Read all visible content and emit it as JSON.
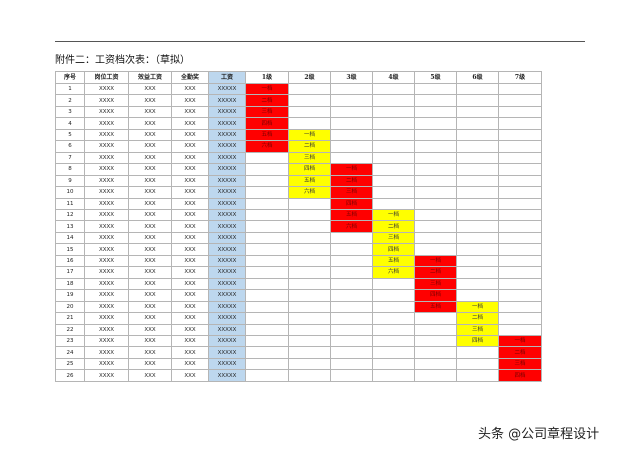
{
  "title": "附件二：工资档次表：（草拟）",
  "headers": [
    "序号",
    "岗位工资",
    "效益工资",
    "全勤奖",
    "工资",
    "1级",
    "2级",
    "3级",
    "4级",
    "5级",
    "6级",
    "7级"
  ],
  "row_values": {
    "post_wage": "XXXX",
    "bonus_wage": "XXX",
    "attendance": "XXX",
    "wage": "XXXXX"
  },
  "row_count": 26,
  "grades": [
    {
      "level": "1级",
      "start_row": 1,
      "color": "#ff0000",
      "labels": [
        "一档",
        "二档",
        "三档",
        "四档",
        "五档",
        "六档"
      ]
    },
    {
      "level": "2级",
      "start_row": 5,
      "color": "#ffff00",
      "labels": [
        "一档",
        "二档",
        "三档",
        "四档",
        "五档",
        "六档"
      ]
    },
    {
      "level": "3级",
      "start_row": 8,
      "color": "#ff0000",
      "labels": [
        "一档",
        "二档",
        "三档",
        "四档",
        "五档",
        "六档"
      ]
    },
    {
      "level": "4级",
      "start_row": 12,
      "color": "#ffff00",
      "labels": [
        "一档",
        "二档",
        "三档",
        "四档",
        "五档",
        "六档"
      ]
    },
    {
      "level": "5级",
      "start_row": 16,
      "color": "#ff0000",
      "labels": [
        "一档",
        "二档",
        "三档",
        "四档",
        "五档"
      ]
    },
    {
      "level": "6级",
      "start_row": 20,
      "color": "#ffff00",
      "labels": [
        "一档",
        "二档",
        "三档",
        "四档"
      ]
    },
    {
      "level": "7级",
      "start_row": 23,
      "color": "#ff0000",
      "labels": [
        "一档",
        "二档",
        "三档",
        "四档"
      ]
    }
  ],
  "colors": {
    "wage_column": "#bdd7ee",
    "odd_grade": "#ff0000",
    "even_grade": "#ffff00"
  },
  "watermark": "头条 @公司章程设计"
}
